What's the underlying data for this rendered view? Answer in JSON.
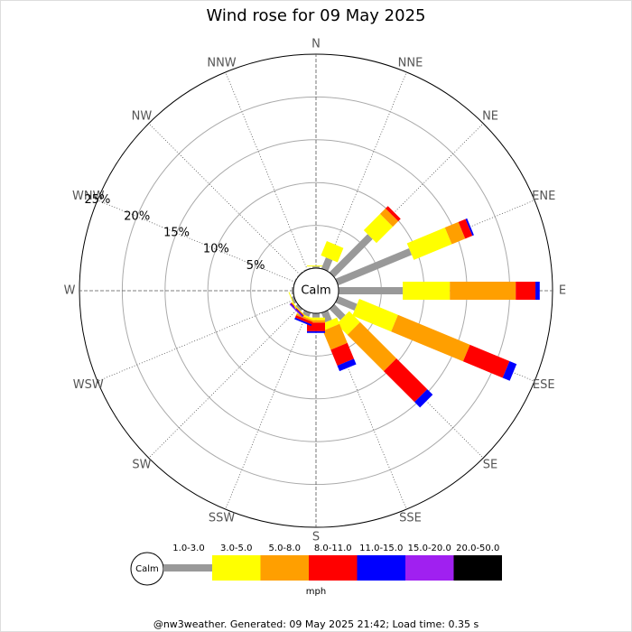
{
  "chart_data": {
    "type": "windrose",
    "title": "Wind rose for 09 May 2025",
    "center_label": "Calm",
    "unit_label": "mph",
    "footer": "@nw3weather.  Generated: 09 May 2025 21:42; Load time: 0.35 s",
    "categories": [
      "N",
      "NNE",
      "NE",
      "ENE",
      "E",
      "ESE",
      "SE",
      "SSE",
      "S",
      "SSW",
      "SW",
      "WSW",
      "W",
      "WNW",
      "NW",
      "NNW"
    ],
    "rlim": [
      0,
      25
    ],
    "rticks": [
      {
        "value": 5,
        "label": "5%"
      },
      {
        "value": 10,
        "label": "10%"
      },
      {
        "value": 15,
        "label": "15%"
      },
      {
        "value": 20,
        "label": "20%"
      },
      {
        "value": 25,
        "label": "25%"
      }
    ],
    "series": [
      {
        "name": "1.0-3.0",
        "color": "#999999",
        "values": [
          0.2,
          1.4,
          6.3,
          9.3,
          7.5,
          2.4,
          1.8,
          1.2,
          0.5,
          0.5,
          0.3,
          0.3,
          0.2,
          0.1,
          0.1,
          0.1
        ]
      },
      {
        "name": "3.0-5.0",
        "color": "#ffff00",
        "values": [
          0.1,
          1.8,
          2.7,
          4.8,
          5.5,
          4.9,
          1.8,
          0.8,
          0.3,
          0.2,
          0.1,
          0.1,
          0,
          0,
          0,
          0
        ]
      },
      {
        "name": "5.0-8.0",
        "color": "#ff9f00",
        "values": [
          0,
          0,
          0.9,
          1.7,
          7.7,
          9.1,
          6.0,
          2.4,
          0.3,
          0.2,
          0,
          0,
          0,
          0,
          0,
          0
        ]
      },
      {
        "name": "8.0-11.0",
        "color": "#ff0000",
        "values": [
          0,
          0,
          0.4,
          0.9,
          2.3,
          5.0,
          5.1,
          2.0,
          1.0,
          0.3,
          0.1,
          0,
          0,
          0,
          0,
          0
        ]
      },
      {
        "name": "11.0-15.0",
        "color": "#0000ff",
        "values": [
          0,
          0,
          0,
          0.2,
          0.5,
          0.9,
          0.9,
          0.7,
          0.2,
          0.2,
          0.1,
          0,
          0,
          0,
          0,
          0
        ]
      },
      {
        "name": "15.0-20.0",
        "color": "#a020f0",
        "values": [
          0,
          0,
          0,
          0,
          0,
          0,
          0,
          0,
          0,
          0,
          0.1,
          0,
          0,
          0,
          0,
          0
        ]
      },
      {
        "name": "20.0-50.0",
        "color": "#000000",
        "values": [
          0,
          0,
          0,
          0,
          0,
          0,
          0,
          0,
          0,
          0,
          0,
          0,
          0,
          0,
          0,
          0
        ]
      }
    ]
  }
}
